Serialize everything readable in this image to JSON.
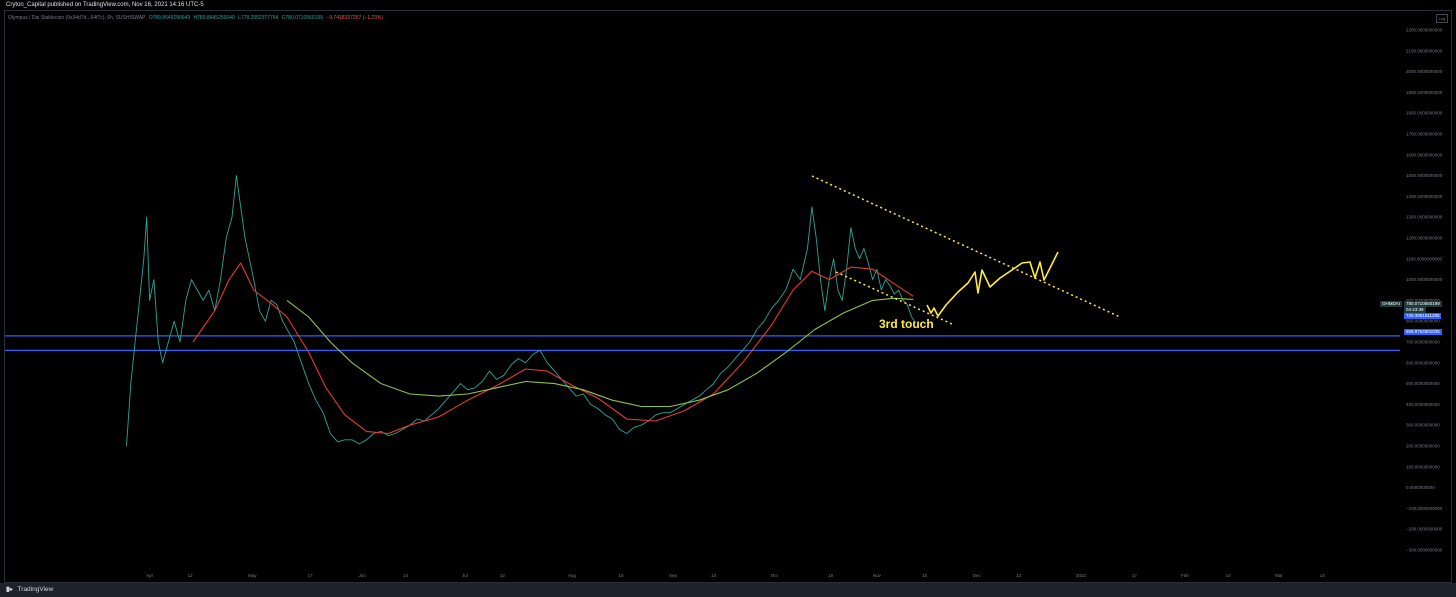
{
  "header": {
    "publisher": "Cryton_Capital published on TradingView.com, Nov 16, 2021 14:16 UTC-5"
  },
  "legend": {
    "symbol": "Olympus / Dai Stablecoin (0x34d7d...64f7c), 6h, SUSHISWAP",
    "open": "O789.8649256649",
    "high": "H789.8645256649",
    "low": "L778.2552377764",
    "close": "C780.0710560199",
    "change": "−9.7418327257 (−1.23%)"
  },
  "auto_label": "Log",
  "price_tags": {
    "symbol_tag": "OHMDAI",
    "last_price": "780.0710560199",
    "countdown": "04:43:39",
    "level_upper": "729.3961611285",
    "level_lower": "659.8754801035"
  },
  "annotation": "3rd touch",
  "footer": {
    "brand": "TradingView"
  },
  "colors": {
    "price_line": "#26a69a",
    "ma_fast": "#e53935",
    "ma_slow": "#8bc34a",
    "support_lines": "#2962ff",
    "drawing": "#ffeb3b"
  },
  "chart_data": {
    "type": "line",
    "title": "",
    "y_ticks": [
      "2200.0000000000",
      "2100.0000000000",
      "2000.0000000000",
      "1900.0000000000",
      "1800.0000000000",
      "1700.0000000000",
      "1600.0000000000",
      "1500.0000000000",
      "1400.0000000000",
      "1300.0000000000",
      "1200.0000000000",
      "1100.0000000000",
      "1000.0000000000",
      "900.0000000000",
      "800.0000000000",
      "700.0000000000",
      "600.0000000000",
      "500.0000000000",
      "400.0000000000",
      "300.0000000000",
      "200.0000000000",
      "100.0000000000",
      "0.0000000000",
      "−100.0000000000",
      "−200.0000000000",
      "−300.0000000000"
    ],
    "ylim": [
      -300,
      2200
    ],
    "x_ticks": [
      "Apr",
      "12",
      "May",
      "17",
      "Jun",
      "14",
      "Jul",
      "12",
      "Aug",
      "16",
      "Sep",
      "13",
      "Oct",
      "18",
      "Nov",
      "15",
      "Dec",
      "13",
      "2022",
      "17",
      "Feb",
      "14",
      "Mar",
      "14"
    ],
    "x_tick_pos": [
      0.1,
      0.128,
      0.171,
      0.211,
      0.247,
      0.277,
      0.318,
      0.344,
      0.392,
      0.426,
      0.462,
      0.49,
      0.532,
      0.571,
      0.603,
      0.636,
      0.672,
      0.701,
      0.744,
      0.781,
      0.816,
      0.846,
      0.881,
      0.911
    ],
    "series": [
      {
        "name": "OHMDAI",
        "points": [
          [
            0.084,
            200
          ],
          [
            0.087,
            500
          ],
          [
            0.09,
            700
          ],
          [
            0.093,
            900
          ],
          [
            0.096,
            1100
          ],
          [
            0.098,
            1300
          ],
          [
            0.1,
            900
          ],
          [
            0.103,
            1000
          ],
          [
            0.106,
            700
          ],
          [
            0.109,
            600
          ],
          [
            0.113,
            700
          ],
          [
            0.117,
            800
          ],
          [
            0.121,
            700
          ],
          [
            0.125,
            900
          ],
          [
            0.129,
            1000
          ],
          [
            0.133,
            950
          ],
          [
            0.137,
            900
          ],
          [
            0.141,
            950
          ],
          [
            0.145,
            850
          ],
          [
            0.149,
            1000
          ],
          [
            0.153,
            1200
          ],
          [
            0.157,
            1300
          ],
          [
            0.16,
            1500
          ],
          [
            0.163,
            1350
          ],
          [
            0.166,
            1200
          ],
          [
            0.169,
            1100
          ],
          [
            0.172,
            1000
          ],
          [
            0.176,
            850
          ],
          [
            0.18,
            800
          ],
          [
            0.184,
            900
          ],
          [
            0.188,
            880
          ],
          [
            0.192,
            800
          ],
          [
            0.196,
            750
          ],
          [
            0.2,
            700
          ],
          [
            0.205,
            600
          ],
          [
            0.21,
            500
          ],
          [
            0.215,
            420
          ],
          [
            0.22,
            360
          ],
          [
            0.225,
            260
          ],
          [
            0.23,
            220
          ],
          [
            0.235,
            230
          ],
          [
            0.24,
            230
          ],
          [
            0.245,
            210
          ],
          [
            0.25,
            230
          ],
          [
            0.255,
            260
          ],
          [
            0.26,
            270
          ],
          [
            0.265,
            250
          ],
          [
            0.27,
            260
          ],
          [
            0.275,
            280
          ],
          [
            0.28,
            300
          ],
          [
            0.285,
            330
          ],
          [
            0.29,
            320
          ],
          [
            0.295,
            350
          ],
          [
            0.3,
            380
          ],
          [
            0.305,
            420
          ],
          [
            0.31,
            460
          ],
          [
            0.315,
            500
          ],
          [
            0.32,
            470
          ],
          [
            0.325,
            480
          ],
          [
            0.33,
            510
          ],
          [
            0.335,
            560
          ],
          [
            0.34,
            520
          ],
          [
            0.345,
            540
          ],
          [
            0.35,
            590
          ],
          [
            0.355,
            620
          ],
          [
            0.36,
            600
          ],
          [
            0.365,
            640
          ],
          [
            0.37,
            660
          ],
          [
            0.375,
            600
          ],
          [
            0.38,
            560
          ],
          [
            0.385,
            520
          ],
          [
            0.39,
            480
          ],
          [
            0.395,
            440
          ],
          [
            0.4,
            450
          ],
          [
            0.405,
            400
          ],
          [
            0.41,
            380
          ],
          [
            0.415,
            350
          ],
          [
            0.42,
            330
          ],
          [
            0.425,
            280
          ],
          [
            0.43,
            260
          ],
          [
            0.435,
            290
          ],
          [
            0.44,
            300
          ],
          [
            0.445,
            320
          ],
          [
            0.45,
            350
          ],
          [
            0.455,
            360
          ],
          [
            0.46,
            360
          ],
          [
            0.465,
            380
          ],
          [
            0.47,
            400
          ],
          [
            0.475,
            420
          ],
          [
            0.48,
            440
          ],
          [
            0.485,
            470
          ],
          [
            0.49,
            500
          ],
          [
            0.495,
            550
          ],
          [
            0.5,
            580
          ],
          [
            0.505,
            620
          ],
          [
            0.51,
            660
          ],
          [
            0.515,
            700
          ],
          [
            0.52,
            760
          ],
          [
            0.525,
            800
          ],
          [
            0.53,
            860
          ],
          [
            0.535,
            900
          ],
          [
            0.54,
            950
          ],
          [
            0.545,
            1050
          ],
          [
            0.55,
            1000
          ],
          [
            0.555,
            1150
          ],
          [
            0.558,
            1350
          ],
          [
            0.561,
            1200
          ],
          [
            0.564,
            1000
          ],
          [
            0.567,
            850
          ],
          [
            0.57,
            1000
          ],
          [
            0.573,
            1100
          ],
          [
            0.576,
            950
          ],
          [
            0.579,
            900
          ],
          [
            0.582,
            1050
          ],
          [
            0.585,
            1250
          ],
          [
            0.588,
            1150
          ],
          [
            0.591,
            1100
          ],
          [
            0.594,
            1150
          ],
          [
            0.597,
            1080
          ],
          [
            0.6,
            1000
          ],
          [
            0.603,
            1050
          ],
          [
            0.606,
            950
          ],
          [
            0.609,
            1000
          ],
          [
            0.612,
            970
          ],
          [
            0.615,
            930
          ],
          [
            0.618,
            950
          ],
          [
            0.621,
            900
          ],
          [
            0.624,
            880
          ],
          [
            0.627,
            820
          ],
          [
            0.63,
            790
          ]
        ]
      },
      {
        "name": "MA fast",
        "points": [
          [
            0.13,
            700
          ],
          [
            0.145,
            850
          ],
          [
            0.155,
            1000
          ],
          [
            0.163,
            1080
          ],
          [
            0.172,
            950
          ],
          [
            0.185,
            880
          ],
          [
            0.195,
            820
          ],
          [
            0.21,
            650
          ],
          [
            0.222,
            480
          ],
          [
            0.235,
            350
          ],
          [
            0.25,
            270
          ],
          [
            0.265,
            260
          ],
          [
            0.28,
            300
          ],
          [
            0.3,
            340
          ],
          [
            0.32,
            420
          ],
          [
            0.34,
            490
          ],
          [
            0.36,
            570
          ],
          [
            0.375,
            560
          ],
          [
            0.39,
            500
          ],
          [
            0.41,
            430
          ],
          [
            0.43,
            330
          ],
          [
            0.45,
            320
          ],
          [
            0.47,
            370
          ],
          [
            0.49,
            450
          ],
          [
            0.51,
            600
          ],
          [
            0.53,
            780
          ],
          [
            0.545,
            950
          ],
          [
            0.558,
            1040
          ],
          [
            0.57,
            1000
          ],
          [
            0.585,
            1060
          ],
          [
            0.6,
            1050
          ],
          [
            0.615,
            980
          ],
          [
            0.628,
            920
          ]
        ]
      },
      {
        "name": "MA slow",
        "points": [
          [
            0.195,
            900
          ],
          [
            0.21,
            820
          ],
          [
            0.225,
            700
          ],
          [
            0.24,
            600
          ],
          [
            0.26,
            500
          ],
          [
            0.28,
            450
          ],
          [
            0.3,
            440
          ],
          [
            0.32,
            450
          ],
          [
            0.34,
            480
          ],
          [
            0.36,
            510
          ],
          [
            0.38,
            500
          ],
          [
            0.4,
            470
          ],
          [
            0.42,
            420
          ],
          [
            0.44,
            390
          ],
          [
            0.46,
            390
          ],
          [
            0.48,
            420
          ],
          [
            0.5,
            470
          ],
          [
            0.52,
            550
          ],
          [
            0.54,
            650
          ],
          [
            0.56,
            760
          ],
          [
            0.58,
            840
          ],
          [
            0.6,
            900
          ],
          [
            0.615,
            910
          ],
          [
            0.628,
            905
          ]
        ]
      }
    ],
    "horizontal_levels": [
      729.3961611285,
      659.8754801035
    ],
    "grid": false,
    "legend": "top-left"
  }
}
